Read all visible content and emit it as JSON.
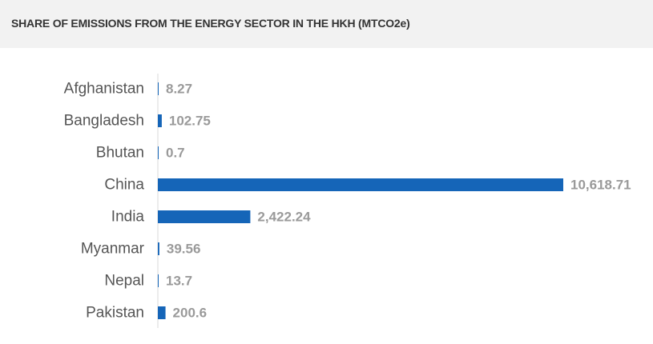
{
  "title": "SHARE OF EMISSIONS FROM THE ENERGY SECTOR IN THE HKH (MTCO2e)",
  "colors": {
    "bar": "#1565b8",
    "axis": "#d9d9d9"
  },
  "chart_data": {
    "type": "bar",
    "orientation": "horizontal",
    "title": "SHARE OF EMISSIONS FROM THE ENERGY SECTOR IN THE HKH (MTCO2e)",
    "categories": [
      "Afghanistan",
      "Bangladesh",
      "Bhutan",
      "China",
      "India",
      "Myanmar",
      "Nepal",
      "Pakistan"
    ],
    "values": [
      8.27,
      102.75,
      0.7,
      10618.71,
      2422.24,
      39.56,
      13.7,
      200.6
    ],
    "value_labels": [
      "8.27",
      "102.75",
      "0.7",
      "10,618.71",
      "2,422.24",
      "39.56",
      "13.7",
      "200.6"
    ],
    "grid": false,
    "legend": "none"
  }
}
